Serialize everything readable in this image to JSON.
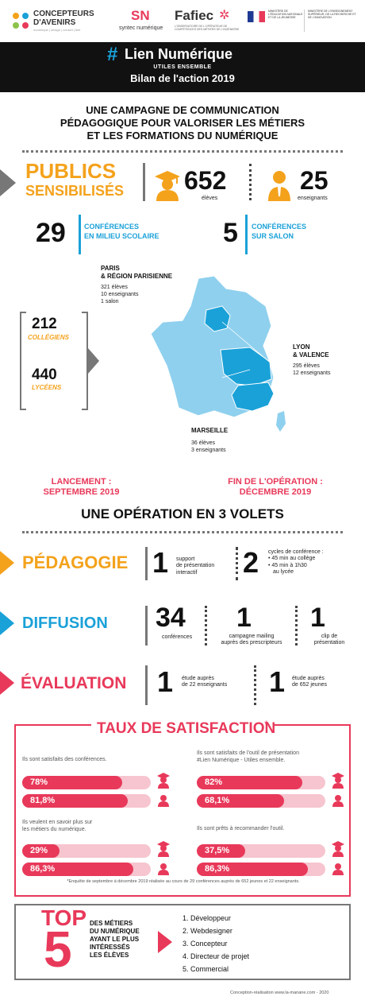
{
  "header": {
    "logo1_line1": "CONCEPTEURS",
    "logo1_line2": "D'AVENIRS",
    "logo1_tag": "numérique | design | conseil | télé",
    "logo2": "syntec numérique",
    "logo3": "Fafiec",
    "logo3_sub": "L'OBSERVATOIRE DE L'OPÉRATEUR DE COMPÉTENCES DES MÉTIERS DE L'INGÉNIERIE",
    "logo4": "MINISTÈRE DE L'ÉDUCATION NATIONALE ET DE LA JEUNESSE",
    "logo5": "MINISTÈRE DE L'ENSEIGNEMENT SUPÉRIEUR, DE LA RECHERCHE ET DE L'INNOVATION"
  },
  "banner": {
    "hash": "#",
    "title": "Lien Numérique",
    "subtitle": "UTILES ENSEMBLE",
    "bilan": "Bilan de l'action 2019"
  },
  "campaign": {
    "line1": "UNE CAMPAGNE DE COMMUNICATION",
    "line2": "PÉDAGOGIQUE POUR VALORISER LES MÉTIERS",
    "line3": "ET LES FORMATIONS DU NUMÉRIQUE"
  },
  "publics": {
    "title1": "PUBLICS",
    "title2": "SENSIBILISÉS",
    "eleves_value": "652",
    "eleves_label": "élèves",
    "enseignants_value": "25",
    "enseignants_label": "enseignants"
  },
  "conferences": {
    "scolaire_value": "29",
    "scolaire_label1": "CONFÉRENCES",
    "scolaire_label2": "EN MILIEU SCOLAIRE",
    "salon_value": "5",
    "salon_label1": "CONFÉRENCES",
    "salon_label2": "SUR SALON"
  },
  "map": {
    "paris_title1": "PARIS",
    "paris_title2": "& RÉGION PARISIENNE",
    "paris_l1": "321 élèves",
    "paris_l2": "10 enseignants",
    "paris_l3": "1 salon",
    "lyon_title1": "LYON",
    "lyon_title2": "& VALENCE",
    "lyon_l1": "295 élèves",
    "lyon_l2": "12 enseignants",
    "marseille_title": "MARSEILLE",
    "marseille_l1": "36 élèves",
    "marseille_l2": "3 enseignants",
    "colleges_value": "212",
    "colleges_label": "COLLÉGIENS",
    "lycees_value": "440",
    "lycees_label": "LYCÉENS"
  },
  "dates": {
    "lancement_label": "LANCEMENT :",
    "lancement_date": "SEPTEMBRE 2019",
    "fin_label": "FIN DE L'OPÉRATION :",
    "fin_date": "DÉCEMBRE 2019"
  },
  "volets": {
    "title": "UNE OPÉRATION EN 3 VOLETS",
    "pedagogie": {
      "title": "PÉDAGOGIE",
      "v1": "1",
      "l1a": "support",
      "l1b": "de présentation",
      "l1c": "interactif",
      "v2": "2",
      "l2a": "cycles de conférence :",
      "l2b": "• 45 min au collège",
      "l2c": "• 45 min à 1h30",
      "l2d": "au lycée"
    },
    "diffusion": {
      "title": "DIFFUSION",
      "v1": "34",
      "l1": "conférences",
      "v2": "1",
      "l2a": "campagne mailing",
      "l2b": "auprès des prescripteurs",
      "v3": "1",
      "l3a": "clip de",
      "l3b": "présentation"
    },
    "evaluation": {
      "title": "ÉVALUATION",
      "v1": "1",
      "l1a": "étude auprès",
      "l1b": "de 22 enseignants",
      "v2": "1",
      "l2a": "étude auprès",
      "l2b": "de 652 jeunes"
    }
  },
  "satisfaction": {
    "title": "TAUX DE SATISFACTION",
    "star": "*",
    "q1": "Ils sont satisfaits des conférences.",
    "q1_eleves": "78%",
    "q1_ens": "81,8%",
    "q2a": "Ils sont satisfaits de l'outil de présentation",
    "q2b": "#Lien Numérique - Utiles ensemble.",
    "q2_eleves": "82%",
    "q2_ens": "68,1%",
    "q3a": "Ils veulent en savoir plus sur",
    "q3b": "les métiers du numérique.",
    "q3_eleves": "29%",
    "q3_ens": "86,3%",
    "q4": "Ils sont prêts à recommander l'outil.",
    "q4_eleves": "37,5%",
    "q4_ens": "86,3%",
    "footnote": "*Enquête de septembre à décembre 2019 réalisée au cours de 29 conférences auprès de 652 jeunes et 22 enseignants.",
    "values": {
      "q1e": 78,
      "q1t": 81.8,
      "q2e": 82,
      "q2t": 68.1,
      "q3e": 29,
      "q3t": 86.3,
      "q4e": 37.5,
      "q4t": 86.3
    }
  },
  "top5": {
    "top": "TOP",
    "five": "5",
    "desc1": "DES MÉTIERS",
    "desc2": "DU NUMÉRIQUE",
    "desc3": "AYANT LE PLUS",
    "desc4": "INTÉRESSÉS",
    "desc5": "LES ÉLÈVES",
    "items": [
      "1. Développeur",
      "2. Webdesigner",
      "3. Concepteur",
      "4. Directeur de projet",
      "5. Commercial"
    ]
  },
  "credit": "Conception-réalisation www.la-manane.com - 2020",
  "colors": {
    "blue": "#1aa1d8",
    "orange": "#f4a21c",
    "red": "#e8395a",
    "black": "#111111"
  }
}
